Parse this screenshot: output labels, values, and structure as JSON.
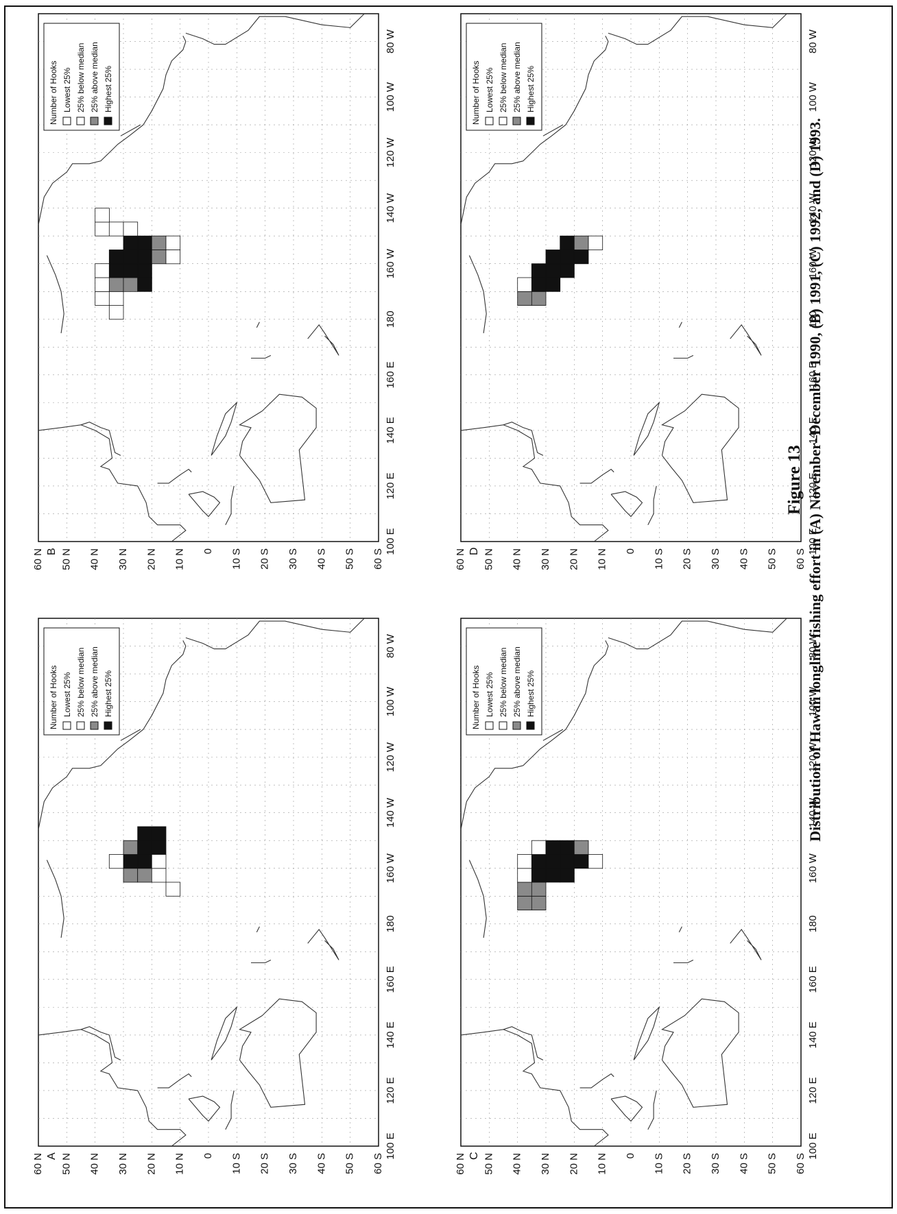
{
  "figure": {
    "label": "Figure 13",
    "caption": "Distribution of Hawaii longline fishing effort in (A) November–December 1990, (B) 1991, (C) 1992, and (D) 1993."
  },
  "axes": {
    "latitude_labels": [
      "60 N",
      "50 N",
      "40 N",
      "30 N",
      "20 N",
      "10 N",
      "0",
      "10 S",
      "20 S",
      "30 S",
      "40 S",
      "50 S",
      "60 S"
    ],
    "longitude_labels": [
      "100 E",
      "120 E",
      "140 E",
      "160 E",
      "180",
      "160 W",
      "140 W",
      "120 W",
      "100 W",
      "80 W"
    ]
  },
  "legend": {
    "title": "Number of Hooks",
    "items": [
      {
        "label": "Lowest 25%",
        "fill": "#ffffff"
      },
      {
        "label": "25% below median",
        "fill": "#ffffff"
      },
      {
        "label": "25% above median",
        "fill": "#8a8a8a"
      },
      {
        "label": "Highest 25%",
        "fill": "#111111"
      }
    ]
  },
  "colors": {
    "land_outline": "#333333",
    "grid": "#999999",
    "cell_stroke": "#111111",
    "lowest": "#ffffff",
    "below_median": "#ffffff",
    "above_median": "#8a8a8a",
    "highest": "#111111"
  },
  "chart_data": [
    {
      "type": "heatmap",
      "panel": "A",
      "period": "November–December 1990",
      "grid_deg": 5,
      "cells": [
        {
          "lat": 27.5,
          "lon": -162.5,
          "q": 3
        },
        {
          "lat": 22.5,
          "lon": -162.5,
          "q": 3
        },
        {
          "lat": 27.5,
          "lon": -157.5,
          "q": 4
        },
        {
          "lat": 22.5,
          "lon": -157.5,
          "q": 4
        },
        {
          "lat": 27.5,
          "lon": -152.5,
          "q": 3
        },
        {
          "lat": 22.5,
          "lon": -152.5,
          "q": 4
        },
        {
          "lat": 17.5,
          "lon": -152.5,
          "q": 4
        },
        {
          "lat": 22.5,
          "lon": -147.5,
          "q": 4
        },
        {
          "lat": 17.5,
          "lon": -147.5,
          "q": 4
        },
        {
          "lat": 32.5,
          "lon": -157.5,
          "q": 1
        },
        {
          "lat": 17.5,
          "lon": -162.5,
          "q": 1
        },
        {
          "lat": 12.5,
          "lon": -167.5,
          "q": 1
        },
        {
          "lat": 17.5,
          "lon": -157.5,
          "q": 2
        }
      ]
    },
    {
      "type": "heatmap",
      "panel": "B",
      "period": "1991",
      "grid_deg": 5,
      "cells": [
        {
          "lat": 37.5,
          "lon": -172.5,
          "q": 1
        },
        {
          "lat": 37.5,
          "lon": -167.5,
          "q": 1
        },
        {
          "lat": 37.5,
          "lon": -162.5,
          "q": 1
        },
        {
          "lat": 32.5,
          "lon": -177.5,
          "q": 1
        },
        {
          "lat": 32.5,
          "lon": -172.5,
          "q": 2
        },
        {
          "lat": 32.5,
          "lon": -167.5,
          "q": 3
        },
        {
          "lat": 32.5,
          "lon": -162.5,
          "q": 4
        },
        {
          "lat": 32.5,
          "lon": -157.5,
          "q": 4
        },
        {
          "lat": 27.5,
          "lon": -167.5,
          "q": 3
        },
        {
          "lat": 27.5,
          "lon": -162.5,
          "q": 4
        },
        {
          "lat": 27.5,
          "lon": -157.5,
          "q": 4
        },
        {
          "lat": 27.5,
          "lon": -152.5,
          "q": 4
        },
        {
          "lat": 22.5,
          "lon": -167.5,
          "q": 4
        },
        {
          "lat": 22.5,
          "lon": -162.5,
          "q": 4
        },
        {
          "lat": 22.5,
          "lon": -157.5,
          "q": 4
        },
        {
          "lat": 22.5,
          "lon": -152.5,
          "q": 4
        },
        {
          "lat": 17.5,
          "lon": -157.5,
          "q": 3
        },
        {
          "lat": 17.5,
          "lon": -152.5,
          "q": 3
        },
        {
          "lat": 12.5,
          "lon": -157.5,
          "q": 2
        },
        {
          "lat": 12.5,
          "lon": -152.5,
          "q": 1
        },
        {
          "lat": 37.5,
          "lon": -147.5,
          "q": 1
        },
        {
          "lat": 37.5,
          "lon": -142.5,
          "q": 1
        },
        {
          "lat": 32.5,
          "lon": -147.5,
          "q": 2
        },
        {
          "lat": 27.5,
          "lon": -147.5,
          "q": 2
        }
      ]
    },
    {
      "type": "heatmap",
      "panel": "C",
      "period": "1992",
      "grid_deg": 5,
      "cells": [
        {
          "lat": 37.5,
          "lon": -172.5,
          "q": 3
        },
        {
          "lat": 37.5,
          "lon": -167.5,
          "q": 3
        },
        {
          "lat": 37.5,
          "lon": -162.5,
          "q": 2
        },
        {
          "lat": 37.5,
          "lon": -157.5,
          "q": 2
        },
        {
          "lat": 32.5,
          "lon": -172.5,
          "q": 3
        },
        {
          "lat": 32.5,
          "lon": -167.5,
          "q": 3
        },
        {
          "lat": 32.5,
          "lon": -162.5,
          "q": 4
        },
        {
          "lat": 32.5,
          "lon": -157.5,
          "q": 4
        },
        {
          "lat": 32.5,
          "lon": -152.5,
          "q": 2
        },
        {
          "lat": 27.5,
          "lon": -162.5,
          "q": 4
        },
        {
          "lat": 27.5,
          "lon": -157.5,
          "q": 4
        },
        {
          "lat": 27.5,
          "lon": -152.5,
          "q": 4
        },
        {
          "lat": 22.5,
          "lon": -162.5,
          "q": 4
        },
        {
          "lat": 22.5,
          "lon": -157.5,
          "q": 4
        },
        {
          "lat": 22.5,
          "lon": -152.5,
          "q": 4
        },
        {
          "lat": 17.5,
          "lon": -157.5,
          "q": 4
        },
        {
          "lat": 17.5,
          "lon": -152.5,
          "q": 3
        },
        {
          "lat": 12.5,
          "lon": -157.5,
          "q": 2
        }
      ]
    },
    {
      "type": "heatmap",
      "panel": "D",
      "period": "1993",
      "grid_deg": 5,
      "cells": [
        {
          "lat": 37.5,
          "lon": -172.5,
          "q": 3
        },
        {
          "lat": 37.5,
          "lon": -167.5,
          "q": 2
        },
        {
          "lat": 32.5,
          "lon": -172.5,
          "q": 3
        },
        {
          "lat": 32.5,
          "lon": -167.5,
          "q": 4
        },
        {
          "lat": 32.5,
          "lon": -162.5,
          "q": 4
        },
        {
          "lat": 27.5,
          "lon": -167.5,
          "q": 4
        },
        {
          "lat": 27.5,
          "lon": -162.5,
          "q": 4
        },
        {
          "lat": 27.5,
          "lon": -157.5,
          "q": 4
        },
        {
          "lat": 22.5,
          "lon": -162.5,
          "q": 4
        },
        {
          "lat": 22.5,
          "lon": -157.5,
          "q": 4
        },
        {
          "lat": 22.5,
          "lon": -152.5,
          "q": 4
        },
        {
          "lat": 17.5,
          "lon": -157.5,
          "q": 4
        },
        {
          "lat": 17.5,
          "lon": -152.5,
          "q": 3
        },
        {
          "lat": 12.5,
          "lon": -152.5,
          "q": 2
        }
      ]
    }
  ]
}
